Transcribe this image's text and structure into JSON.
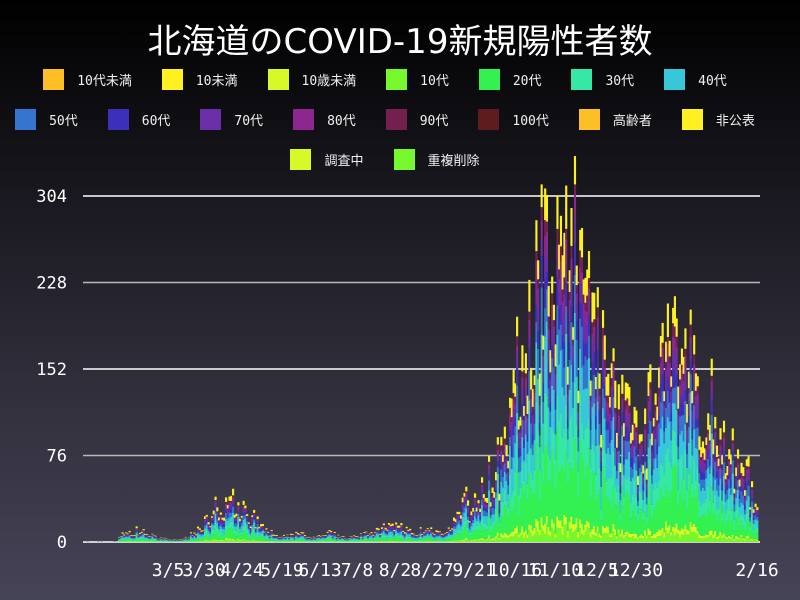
{
  "title": "北海道のCOVID-19新規陽性者数",
  "legend": [
    {
      "label": "10代未満",
      "color": "#FDBF26"
    },
    {
      "label": "10未満",
      "color": "#FEF021"
    },
    {
      "label": "10歳未満",
      "color": "#D7F927"
    },
    {
      "label": "10代",
      "color": "#77F82E"
    },
    {
      "label": "20代",
      "color": "#33F150"
    },
    {
      "label": "30代",
      "color": "#36E8A6"
    },
    {
      "label": "40代",
      "color": "#36C8D8"
    },
    {
      "label": "50代",
      "color": "#3575D0"
    },
    {
      "label": "60代",
      "color": "#3B2FBB"
    },
    {
      "label": "70代",
      "color": "#6A2EA8"
    },
    {
      "label": "80代",
      "color": "#8C2790"
    },
    {
      "label": "90代",
      "color": "#74204E"
    },
    {
      "label": "100代",
      "color": "#5E1C1F"
    },
    {
      "label": "高齢者",
      "color": "#FDBF26"
    },
    {
      "label": "非公表",
      "color": "#FEF021"
    },
    {
      "label": "調査中",
      "color": "#D7F927"
    },
    {
      "label": "重複削除",
      "color": "#77F82E"
    }
  ],
  "chart_data": {
    "type": "bar",
    "stacked": true,
    "title": "北海道のCOVID-19新規陽性者数",
    "xlabel": "",
    "ylabel": "",
    "ylim": [
      0,
      304
    ],
    "yticks": [
      0,
      76,
      152,
      228,
      304
    ],
    "xticks": [
      "3/5",
      "3/30",
      "4/24",
      "5/19",
      "6/13",
      "7/8",
      "8/2",
      "8/27",
      "9/21",
      "10/16",
      "11/10",
      "12/5",
      "12/30",
      "2/16"
    ],
    "grid": true,
    "legend_position": "top",
    "series_names": [
      "10代未満",
      "10未満",
      "10歳未満",
      "10代",
      "20代",
      "30代",
      "40代",
      "50代",
      "60代",
      "70代",
      "80代",
      "90代",
      "100代",
      "高齢者",
      "非公表",
      "調査中",
      "重複削除"
    ],
    "daily_total_envelope": {
      "description": "approximate daily total new positives (read from stacked bar heights), keyed by date label",
      "points": [
        {
          "x": "1/28",
          "y": 1
        },
        {
          "x": "2/14",
          "y": 2
        },
        {
          "x": "2/20",
          "y": 5
        },
        {
          "x": "2/27",
          "y": 12
        },
        {
          "x": "3/5",
          "y": 8
        },
        {
          "x": "3/15",
          "y": 3
        },
        {
          "x": "3/30",
          "y": 2
        },
        {
          "x": "4/10",
          "y": 12
        },
        {
          "x": "4/17",
          "y": 30
        },
        {
          "x": "4/24",
          "y": 40
        },
        {
          "x": "5/1",
          "y": 30
        },
        {
          "x": "5/10",
          "y": 12
        },
        {
          "x": "5/19",
          "y": 4
        },
        {
          "x": "6/1",
          "y": 8
        },
        {
          "x": "6/13",
          "y": 4
        },
        {
          "x": "6/25",
          "y": 10
        },
        {
          "x": "7/8",
          "y": 3
        },
        {
          "x": "7/25",
          "y": 8
        },
        {
          "x": "8/2",
          "y": 12
        },
        {
          "x": "8/15",
          "y": 18
        },
        {
          "x": "8/27",
          "y": 8
        },
        {
          "x": "9/10",
          "y": 12
        },
        {
          "x": "9/21",
          "y": 10
        },
        {
          "x": "10/5",
          "y": 30
        },
        {
          "x": "10/16",
          "y": 40
        },
        {
          "x": "10/25",
          "y": 70
        },
        {
          "x": "11/1",
          "y": 120
        },
        {
          "x": "11/5",
          "y": 210
        },
        {
          "x": "11/10",
          "y": 250
        },
        {
          "x": "11/14",
          "y": 301
        },
        {
          "x": "11/20",
          "y": 240
        },
        {
          "x": "11/28",
          "y": 200
        },
        {
          "x": "12/5",
          "y": 170
        },
        {
          "x": "12/12",
          "y": 120
        },
        {
          "x": "12/20",
          "y": 100
        },
        {
          "x": "12/27",
          "y": 180
        },
        {
          "x": "12/30",
          "y": 200
        },
        {
          "x": "1/5",
          "y": 170
        },
        {
          "x": "1/15",
          "y": 120
        },
        {
          "x": "1/25",
          "y": 100
        },
        {
          "x": "2/5",
          "y": 70
        },
        {
          "x": "2/16",
          "y": 40
        }
      ]
    }
  }
}
